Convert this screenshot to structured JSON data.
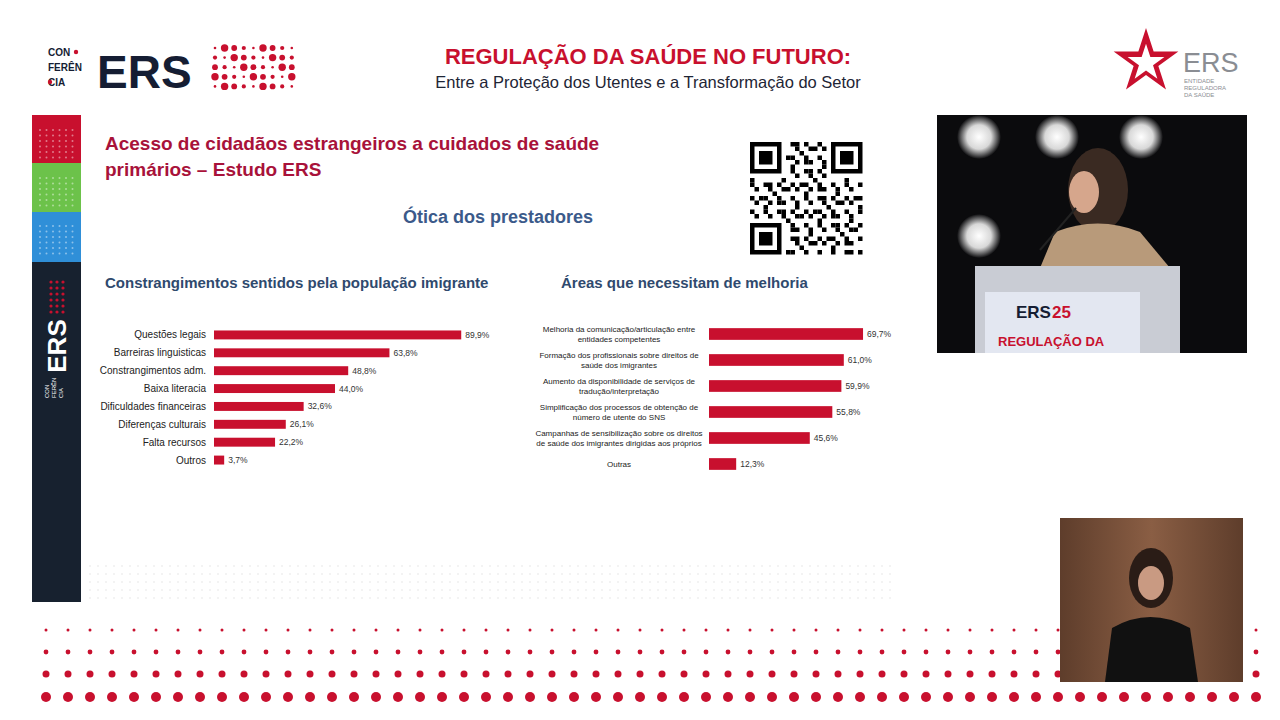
{
  "page": {
    "conference_logo": {
      "small": [
        "CON",
        "FERÊN",
        "CIA"
      ],
      "big": "ERS"
    },
    "header_title": "REGULAÇÃO DA SAÚDE NO FUTURO:",
    "header_subtitle": "Entre a Proteção dos Utentes e a Transformação do Setor",
    "org_logo": {
      "name": "ERS",
      "tagline": [
        "ENTIDADE",
        "REGULADORA",
        "DA SAÚDE"
      ]
    },
    "sidebar": {
      "big": "ERS",
      "small": [
        "CON",
        "FERÊN",
        "CIA"
      ]
    },
    "slide_title": "Acesso de cidadãos estrangeiros a cuidados de saúde primários – Estudo ERS",
    "slide_subtitle": "Ótica dos prestadores",
    "podium": {
      "big": "ERS",
      "number": "25",
      "text": "REGULAÇÃO DA"
    }
  },
  "chart_data": [
    {
      "type": "bar",
      "orientation": "horizontal",
      "title": "Constrangimentos sentidos pela população imigrante",
      "categories": [
        "Questões legais",
        "Barreiras linguisticas",
        "Constrangimentos adm.",
        "Baixa literacia",
        "Dificuldades financeiras",
        "Diferenças culturais",
        "Falta recursos",
        "Outros"
      ],
      "values": [
        89.9,
        63.8,
        48.8,
        44.0,
        32.6,
        26.1,
        22.2,
        3.7
      ],
      "value_labels": [
        "89,9%",
        "63,8%",
        "48,8%",
        "44,0%",
        "32,6%",
        "26,1%",
        "22,2%",
        "3,7%"
      ],
      "color": "#c8102e",
      "xlim": [
        0,
        100
      ],
      "tick_labels": "y",
      "data_labels": true
    },
    {
      "type": "bar",
      "orientation": "horizontal",
      "title": "Áreas que necessitam de melhoria",
      "categories": [
        "Melhoria da comunicação/articulação entre entidades competentes",
        "Formação dos profissionais sobre direitos de saúde dos imigrantes",
        "Aumento da disponibilidade de serviços de tradução/interpretação",
        "Simplificação dos processos de obtenção de número de utente do SNS",
        "Campanhas de sensibilização sobre os direitos de saúde dos imigrantes dirigidas aos próprios",
        "Outras"
      ],
      "values": [
        69.7,
        61.0,
        59.9,
        55.8,
        45.6,
        12.3
      ],
      "value_labels": [
        "69,7%",
        "61,0%",
        "59,9%",
        "55,8%",
        "45,6%",
        "12,3%"
      ],
      "color": "#c8102e",
      "xlim": [
        0,
        100
      ],
      "tick_labels": "y",
      "data_labels": true
    }
  ]
}
